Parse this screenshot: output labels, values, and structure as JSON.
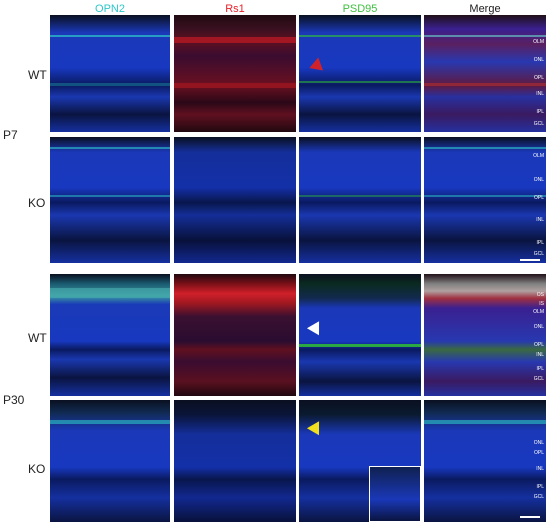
{
  "columns": [
    {
      "label": "OPN2",
      "color": "#2ec7c9"
    },
    {
      "label": "Rs1",
      "color": "#e8202a"
    },
    {
      "label": "PSD95",
      "color": "#3fbf3f"
    },
    {
      "label": "Merge",
      "color": "#222222"
    }
  ],
  "stages": [
    "P7",
    "P30"
  ],
  "genotypes": {
    "wt": "WT",
    "ko": "KO"
  },
  "layers": {
    "p7_wt": [
      "OLM",
      "ONL",
      "OPL",
      "INL",
      "IPL",
      "GCL"
    ],
    "p7_ko": [
      "OLM",
      "ONL",
      "OPL",
      "INL",
      "IPL",
      "GCL"
    ],
    "p30_wt": [
      "OS",
      "IS",
      "OLM",
      "ONL",
      "OPL",
      "INL",
      "IPL",
      "GCL"
    ],
    "p30_ko": [
      "ONL",
      "OPL",
      "INL",
      "IPL",
      "GCL"
    ]
  },
  "colors": {
    "nuclei": "#1a3fd0",
    "opn2": "#2ec7c9",
    "rs1": "#c4202a",
    "psd95": "#32c832",
    "arrow_red": "#d0222a",
    "arrow_white": "#ffffff",
    "arrow_yellow": "#f0e020"
  }
}
